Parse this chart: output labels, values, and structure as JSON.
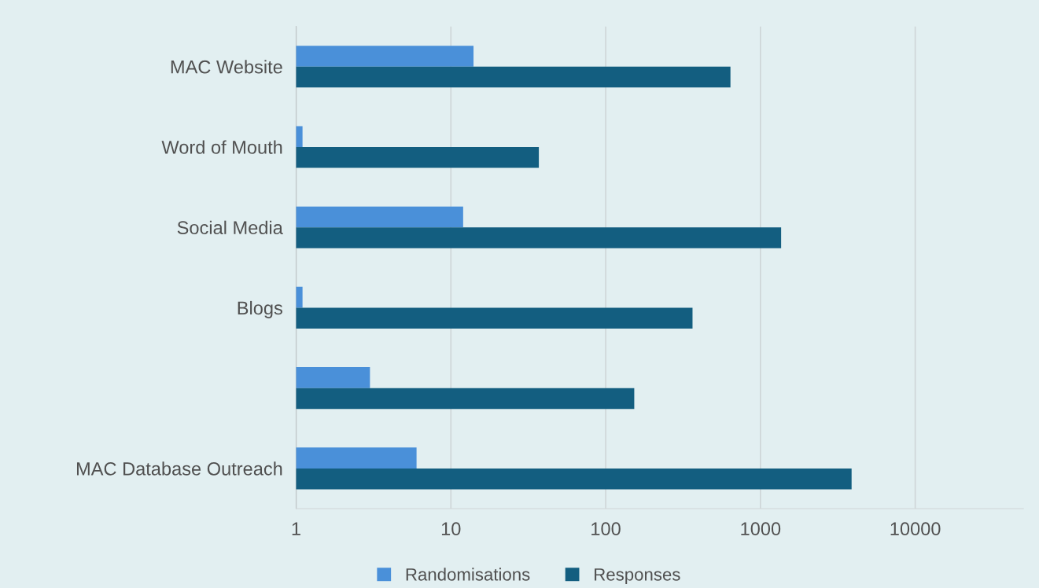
{
  "chart_data": {
    "type": "bar",
    "orientation": "horizontal",
    "log": "x",
    "categories": [
      "MAC Website",
      "Word of Mouth",
      "Social Media",
      "Blogs",
      null,
      "MAC Database Outreach"
    ],
    "series": [
      {
        "name": "Randomisations",
        "color": "#4a90d9",
        "values": [
          14,
          1.1,
          12,
          1.1,
          3,
          6
        ]
      },
      {
        "name": "Responses",
        "color": "#135e80",
        "values": [
          640,
          37,
          1360,
          364,
          153,
          3880
        ]
      }
    ],
    "xlim": [
      1,
      50000
    ],
    "xticks": [
      1,
      10,
      100,
      1000,
      10000
    ],
    "grid": "x",
    "legend": "bottom"
  }
}
